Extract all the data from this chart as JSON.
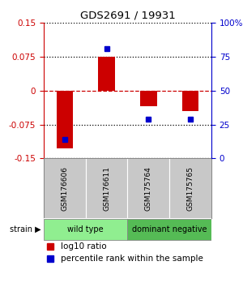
{
  "title": "GDS2691 / 19931",
  "samples": [
    "GSM176606",
    "GSM176611",
    "GSM175764",
    "GSM175765"
  ],
  "log10_ratio": [
    -0.128,
    0.075,
    -0.035,
    -0.045
  ],
  "percentile_rank": [
    14,
    81,
    29,
    29
  ],
  "groups": [
    {
      "label": "wild type",
      "indices": [
        0,
        1
      ],
      "color": "#90EE90"
    },
    {
      "label": "dominant negative",
      "indices": [
        2,
        3
      ],
      "color": "#55BB55"
    }
  ],
  "bar_color": "#CC0000",
  "dot_color": "#0000CC",
  "left_ylim": [
    -0.15,
    0.15
  ],
  "right_ylim": [
    0,
    100
  ],
  "left_yticks": [
    -0.15,
    -0.075,
    0,
    0.075,
    0.15
  ],
  "right_yticks": [
    0,
    25,
    50,
    75,
    100
  ],
  "right_yticklabels": [
    "0",
    "25",
    "50",
    "75",
    "100%"
  ],
  "left_ytick_labels": [
    "-0.15",
    "-0.075",
    "0",
    "0.075",
    "0.15"
  ],
  "left_ycolor": "#CC0000",
  "right_ycolor": "#0000CC",
  "zero_line_color": "#CC0000",
  "dotted_line_color": "#000000",
  "sample_box_color": "#C8C8C8",
  "sample_box_border": "#888888",
  "background_color": "#ffffff"
}
